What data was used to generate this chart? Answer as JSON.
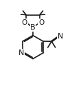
{
  "bg_color": "#ffffff",
  "line_color": "#1a1a1a",
  "line_width": 1.2,
  "font_size": 7.0,
  "figsize": [
    1.05,
    1.28
  ],
  "dpi": 100,
  "xlim": [
    0,
    10.5
  ],
  "ylim": [
    0,
    12.5
  ]
}
